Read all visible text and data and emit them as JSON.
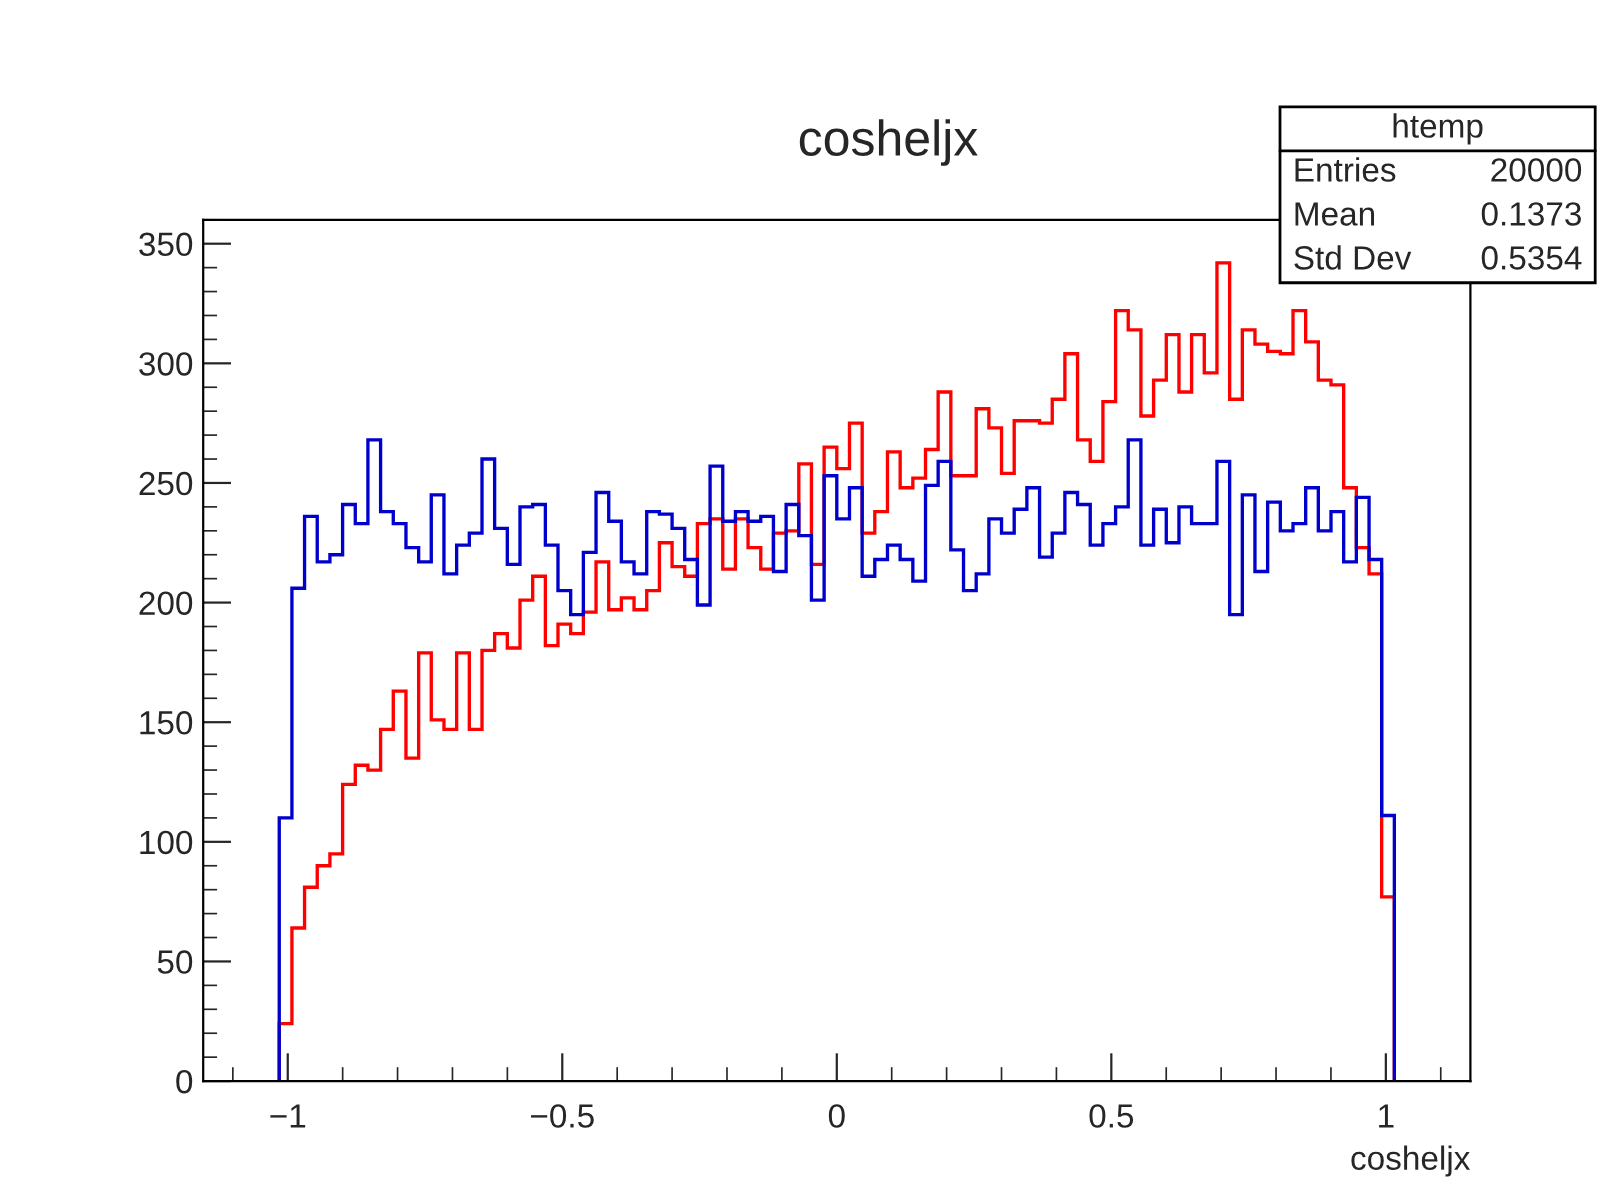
{
  "chart_data": {
    "type": "histogram",
    "title": "cosheljx",
    "xlabel": "cosheljx",
    "annotations": [
      "htemp",
      "Entries",
      "20000",
      "Mean",
      "0.1373",
      "Std Dev",
      "0.5354"
    ],
    "bins": [
      -1.0155,
      -0.9924,
      -0.9694,
      -0.9463,
      -0.9232,
      -0.9001,
      -0.877,
      -0.854,
      -0.8309,
      -0.8078,
      -0.7847,
      -0.7616,
      -0.7386,
      -0.7155,
      -0.6924,
      -0.6693,
      -0.6462,
      -0.6232,
      -0.6001,
      -0.577,
      -0.5539,
      -0.5308,
      -0.5078,
      -0.4847,
      -0.4616,
      -0.4385,
      -0.4154,
      -0.3924,
      -0.3693,
      -0.3462,
      -0.3231,
      -0.3,
      -0.277,
      -0.2539,
      -0.2308,
      -0.2077,
      -0.1846,
      -0.1616,
      -0.1385,
      -0.1154,
      -0.0923,
      -0.0692,
      -0.0462,
      -0.0231,
      0,
      0.0231,
      0.0462,
      0.0692,
      0.0923,
      0.1154,
      0.1385,
      0.1616,
      0.1846,
      0.2077,
      0.2308,
      0.2539,
      0.277,
      0.3,
      0.3231,
      0.3462,
      0.3693,
      0.3924,
      0.4154,
      0.4385,
      0.4616,
      0.4847,
      0.5078,
      0.5308,
      0.5539,
      0.577,
      0.6001,
      0.6232,
      0.6462,
      0.6693,
      0.6924,
      0.7155,
      0.7386,
      0.7616,
      0.7847,
      0.8078,
      0.8309,
      0.854,
      0.877,
      0.9001,
      0.9232,
      0.9463,
      0.9694,
      0.9924,
      1.0155
    ],
    "series": [
      {
        "color": "#ff0000",
        "values": [
          24,
          64,
          81,
          90,
          95,
          124,
          132,
          130,
          147,
          163,
          135,
          179,
          151,
          147,
          179,
          147,
          180,
          187,
          181,
          201,
          211,
          182,
          191,
          187,
          196,
          217,
          197,
          202,
          197,
          205,
          225,
          215,
          211,
          233,
          235,
          214,
          235,
          223,
          214,
          229,
          230,
          258,
          216,
          265,
          256,
          275,
          229,
          238,
          263,
          248,
          252,
          264,
          288,
          253,
          253,
          281,
          273,
          254,
          276,
          276,
          275,
          285,
          304,
          268,
          259,
          284,
          322,
          314,
          278,
          293,
          312,
          288,
          312,
          296,
          342,
          285,
          314,
          308,
          305,
          304,
          322,
          309,
          293,
          291,
          248,
          223,
          212,
          77
        ]
      },
      {
        "color": "#0000cc",
        "values": [
          110,
          206,
          236,
          217,
          220,
          241,
          233,
          268,
          238,
          233,
          223,
          217,
          245,
          212,
          224,
          229,
          260,
          231,
          216,
          240,
          241,
          224,
          205,
          195,
          221,
          246,
          234,
          217,
          212,
          238,
          237,
          231,
          218,
          199,
          257,
          234,
          238,
          234,
          236,
          213,
          241,
          228,
          201,
          253,
          235,
          248,
          211,
          218,
          224,
          218,
          209,
          249,
          259,
          222,
          205,
          212,
          235,
          229,
          239,
          248,
          219,
          229,
          246,
          241,
          224,
          233,
          240,
          268,
          224,
          239,
          225,
          240,
          233,
          233,
          259,
          195,
          245,
          213,
          242,
          230,
          233,
          248,
          230,
          238,
          217,
          244,
          218,
          111
        ]
      }
    ],
    "xlim": [
      -1.154,
      1.154
    ],
    "ylim": [
      0,
      360
    ],
    "xticks": [
      {
        "value": -1,
        "label": "−1"
      },
      {
        "value": -0.5,
        "label": "−0.5"
      },
      0,
      0.5,
      1
    ],
    "yticks": [
      0,
      50,
      100,
      150,
      200,
      250,
      300,
      350
    ],
    "grid": false
  }
}
